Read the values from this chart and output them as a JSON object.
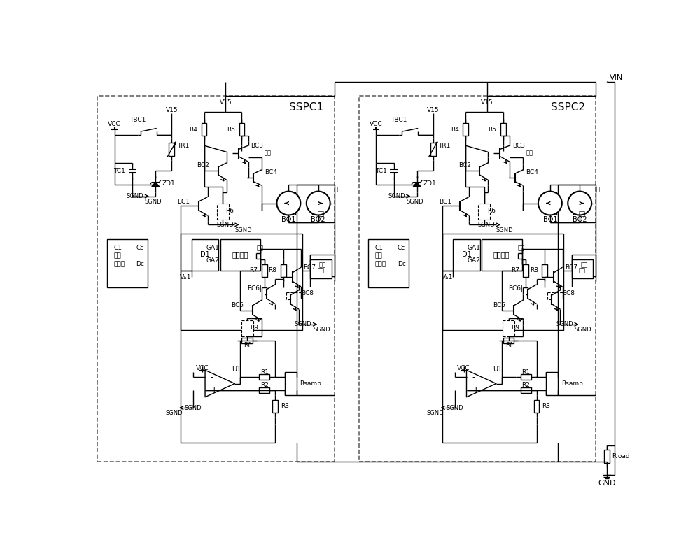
{
  "bg_color": "#ffffff",
  "line_color": "#000000",
  "dashed_color": "#666666",
  "fig_width": 10.0,
  "fig_height": 7.85,
  "dpi": 100,
  "sspc1_label": "SSPC1",
  "sspc2_label": "SSPC2",
  "vin_label": "VIN",
  "gnd_label": "GND",
  "rload_label": "Rload"
}
